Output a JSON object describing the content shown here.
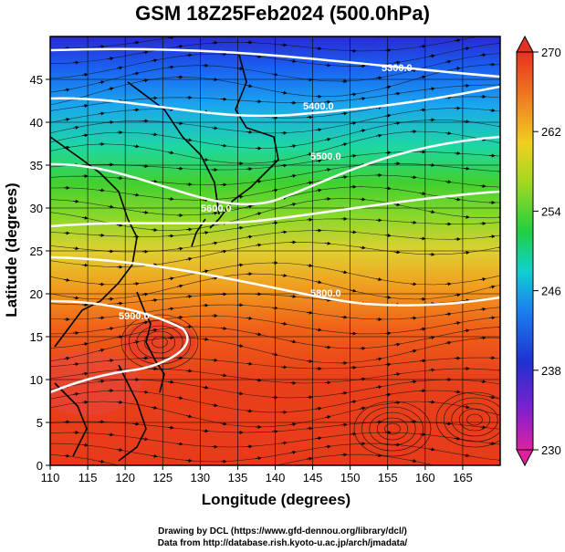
{
  "title": "GSM 18Z25Feb2024 (500.0hPa)",
  "xlabel": "Longitude (degrees)",
  "ylabel": "Latitude  (degrees)",
  "credits": {
    "line1": "Drawing by DCL (https://www.gfd-dennou.org/library/dcl/)",
    "line2": "Data from http://database.rish.kyoto-u.ac.jp/arch/jmadata/"
  },
  "chart_data": {
    "type": "heatmap",
    "xlim": [
      110,
      170
    ],
    "ylim": [
      0,
      50
    ],
    "x_ticks": [
      110,
      115,
      120,
      125,
      130,
      135,
      140,
      145,
      150,
      155,
      160,
      165
    ],
    "y_ticks": [
      0,
      5,
      10,
      15,
      20,
      25,
      30,
      35,
      40,
      45
    ],
    "colorbar": {
      "ticks": [
        230,
        238,
        246,
        254,
        262,
        270
      ],
      "range": [
        230,
        270
      ]
    },
    "contours": [
      {
        "label": "5300.0"
      },
      {
        "label": "5400.0"
      },
      {
        "label": "5500.0"
      },
      {
        "label": "5600.0"
      },
      {
        "label": "5800.0"
      },
      {
        "label": "5900.0"
      }
    ]
  }
}
